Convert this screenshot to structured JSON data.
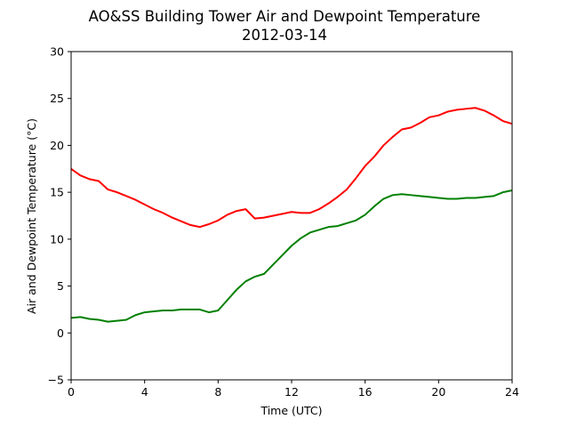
{
  "chart_data": {
    "type": "line",
    "title": "AO&SS Building Tower Air and Dewpoint Temperature",
    "subtitle": "2012-03-14",
    "xlabel": "Time (UTC)",
    "ylabel": "Air and Dewpoint Temperature (°C)",
    "xlim": [
      0,
      24
    ],
    "ylim": [
      -5,
      30
    ],
    "xticks": [
      0,
      4,
      8,
      12,
      16,
      20,
      24
    ],
    "yticks": [
      -5,
      0,
      5,
      10,
      15,
      20,
      25,
      30
    ],
    "grid": false,
    "legend": "none",
    "series": [
      {
        "color": "#ff0000",
        "x": [
          0,
          0.5,
          1,
          1.5,
          2,
          2.5,
          3,
          3.5,
          4,
          4.5,
          5,
          5.5,
          6,
          6.5,
          7,
          7.5,
          8,
          8.5,
          9,
          9.5,
          10,
          10.5,
          11,
          11.5,
          12,
          12.5,
          13,
          13.5,
          14,
          14.5,
          15,
          15.5,
          16,
          16.5,
          17,
          17.5,
          18,
          18.5,
          19,
          19.5,
          20,
          20.5,
          21,
          21.5,
          22,
          22.5,
          23,
          23.5,
          24
        ],
        "values": [
          17.5,
          16.8,
          16.4,
          16.2,
          15.3,
          15.0,
          14.6,
          14.2,
          13.7,
          13.2,
          12.8,
          12.3,
          11.9,
          11.5,
          11.3,
          11.6,
          12.0,
          12.6,
          13.0,
          13.2,
          12.2,
          12.3,
          12.5,
          12.7,
          12.9,
          12.8,
          12.8,
          13.2,
          13.8,
          14.5,
          15.3,
          16.5,
          17.8,
          18.8,
          20.0,
          20.9,
          21.7,
          21.9,
          22.4,
          23.0,
          23.2,
          23.6,
          23.8,
          23.9,
          24.0,
          23.7,
          23.2,
          22.6,
          22.3
        ]
      },
      {
        "color": "#008000",
        "x": [
          0,
          0.5,
          1,
          1.5,
          2,
          2.5,
          3,
          3.5,
          4,
          4.5,
          5,
          5.5,
          6,
          6.5,
          7,
          7.5,
          8,
          8.5,
          9,
          9.5,
          10,
          10.5,
          11,
          11.5,
          12,
          12.5,
          13,
          13.5,
          14,
          14.5,
          15,
          15.5,
          16,
          16.5,
          17,
          17.5,
          18,
          18.5,
          19,
          19.5,
          20,
          20.5,
          21,
          21.5,
          22,
          22.5,
          23,
          23.5,
          24
        ],
        "values": [
          1.6,
          1.7,
          1.5,
          1.4,
          1.2,
          1.3,
          1.4,
          1.9,
          2.2,
          2.3,
          2.4,
          2.4,
          2.5,
          2.5,
          2.5,
          2.2,
          2.4,
          3.5,
          4.6,
          5.5,
          6.0,
          6.3,
          7.3,
          8.3,
          9.3,
          10.1,
          10.7,
          11.0,
          11.3,
          11.4,
          11.7,
          12.0,
          12.6,
          13.5,
          14.3,
          14.7,
          14.8,
          14.7,
          14.6,
          14.5,
          14.4,
          14.3,
          14.3,
          14.4,
          14.4,
          14.5,
          14.6,
          15.0,
          15.2
        ]
      }
    ]
  }
}
